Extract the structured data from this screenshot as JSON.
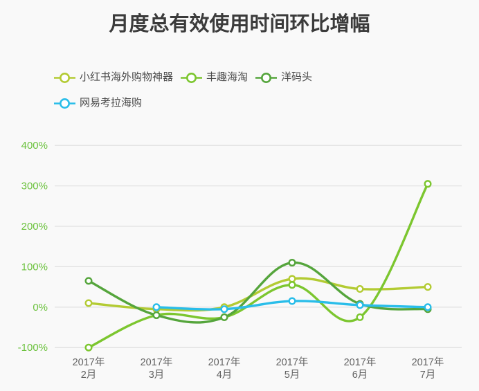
{
  "page": {
    "background": "#f9f9f9"
  },
  "chart_data": {
    "type": "line",
    "title": "月度总有效使用时间环比增幅",
    "categories": [
      "2017年2月",
      "2017年3月",
      "2017年4月",
      "2017年5月",
      "2017年6月",
      "2017年7月"
    ],
    "category_label_lines": [
      [
        "2017年",
        "2月"
      ],
      [
        "2017年",
        "3月"
      ],
      [
        "2017年",
        "4月"
      ],
      [
        "2017年",
        "5月"
      ],
      [
        "2017年",
        "6月"
      ],
      [
        "2017年",
        "7月"
      ]
    ],
    "series": [
      {
        "name": "小红书海外购物神器",
        "color": "#b3cb33",
        "values": [
          10,
          -5,
          0,
          70,
          45,
          50
        ]
      },
      {
        "name": "丰趣海淘",
        "color": "#7cc62f",
        "values": [
          -100,
          -20,
          -25,
          55,
          -25,
          305
        ]
      },
      {
        "name": "洋码头",
        "color": "#55a53c",
        "values": [
          65,
          -20,
          -25,
          110,
          8,
          -5
        ]
      },
      {
        "name": "网易考拉海购",
        "color": "#29bde9",
        "values": [
          null,
          0,
          -5,
          15,
          5,
          0
        ]
      }
    ],
    "smooth": true,
    "ylim": [
      -100,
      400
    ],
    "yticks": [
      400,
      300,
      200,
      100,
      0,
      -100
    ],
    "ytick_suffix": "%",
    "grid": "horizontal-only",
    "legend_position": "top-left",
    "colors": {
      "ytick_label": "#6cc23e",
      "xtick_label": "#636363",
      "gridline": "#e1e1e1",
      "title": "#3b3b3b",
      "legend_text": "#4a4a4a"
    }
  }
}
